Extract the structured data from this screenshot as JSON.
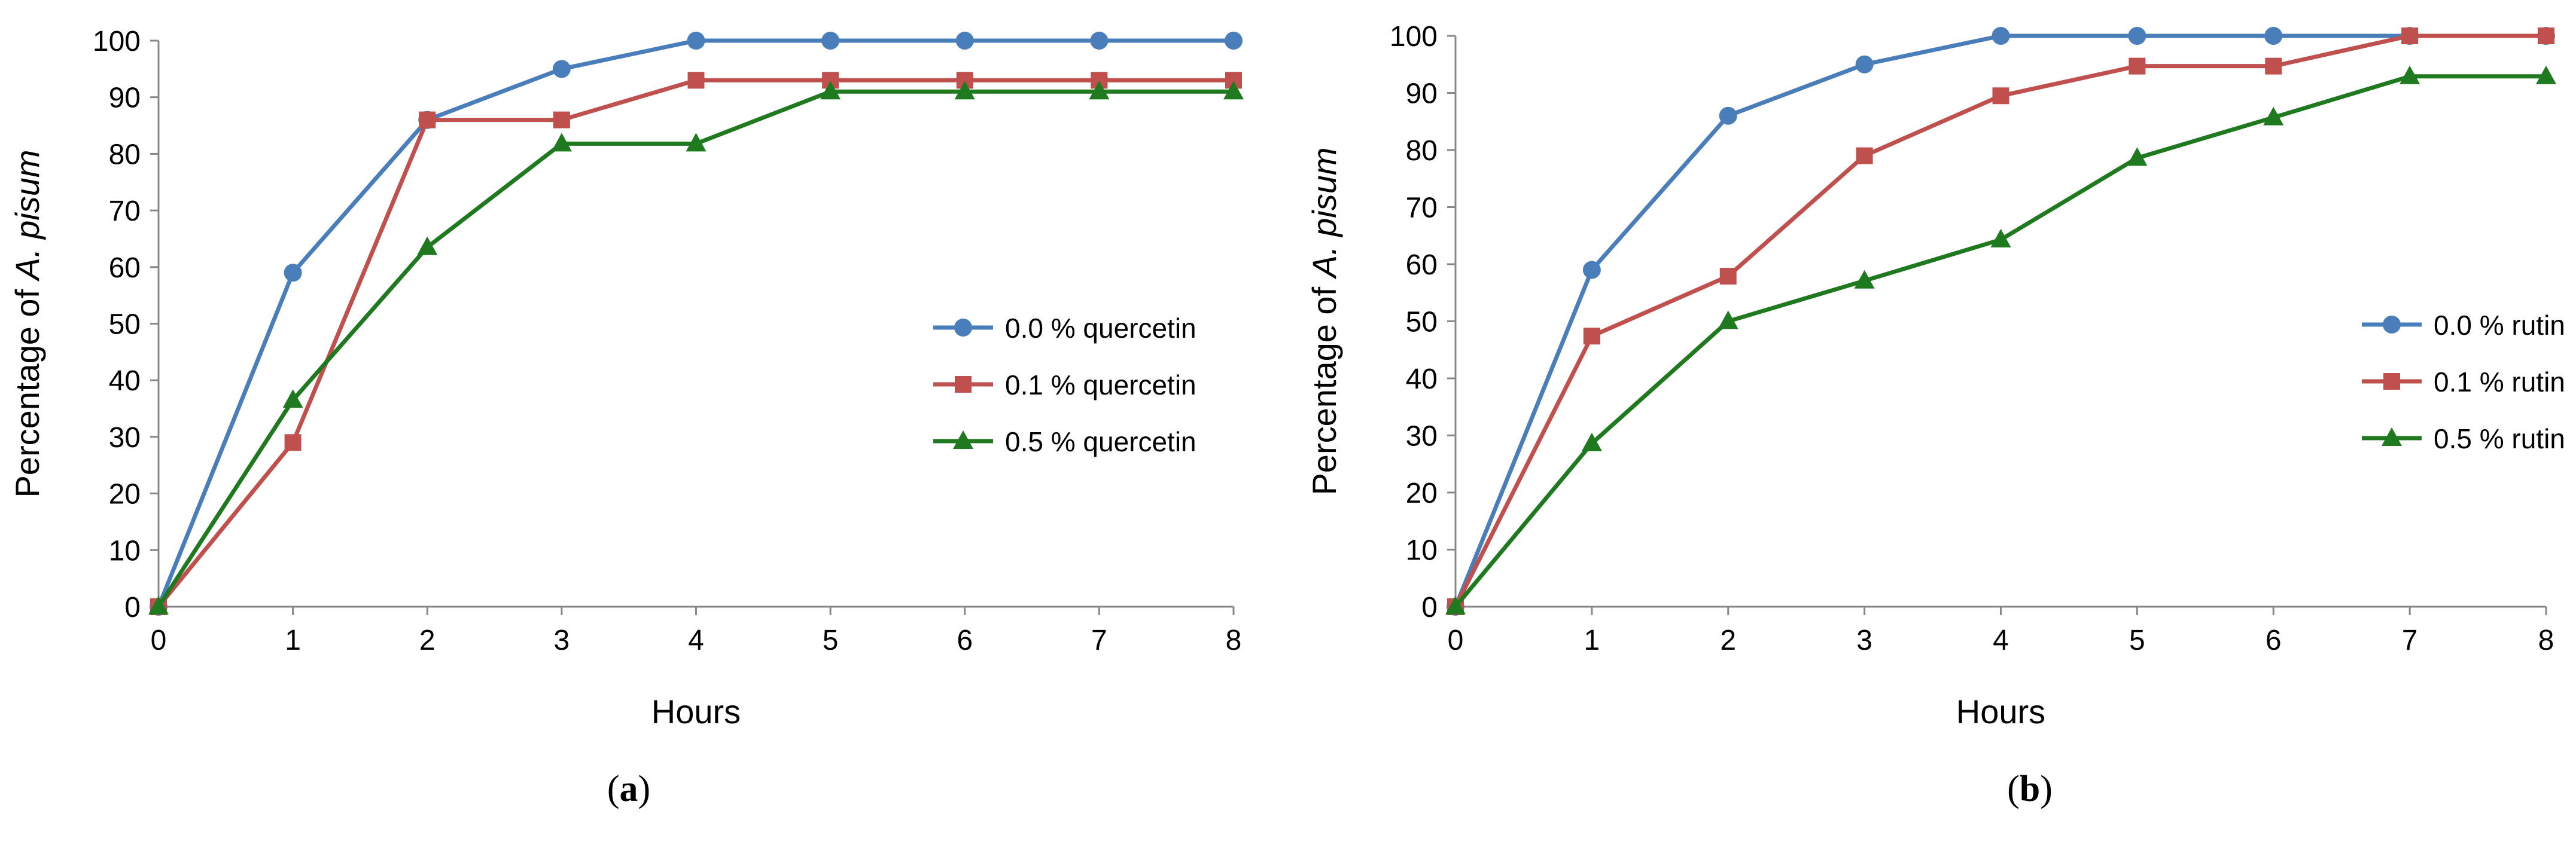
{
  "charts": [
    {
      "panel_label": "a",
      "legend_position": "middle-right",
      "series_colors": [
        "#4a7ebb",
        "#c0504d",
        "#1f7a1f"
      ]
    },
    {
      "panel_label": "b",
      "legend_position": "middle-right",
      "series_colors": [
        "#4a7ebb",
        "#c0504d",
        "#1f7a1f"
      ]
    }
  ],
  "chart_data": [
    {
      "type": "line",
      "title": "",
      "xlabel": "Hours",
      "ylabel_prefix": "Percentage of ",
      "ylabel_species": "A. pisum",
      "x": [
        0,
        1,
        2,
        3,
        4,
        5,
        6,
        7,
        8
      ],
      "xlim": [
        0,
        8
      ],
      "ylim": [
        0,
        100
      ],
      "ytick_step": 10,
      "series": [
        {
          "name": "0.0 % quercetin",
          "marker": "circle",
          "values": [
            0,
            59,
            86,
            95,
            100,
            100,
            100,
            100,
            100
          ]
        },
        {
          "name": "0.1 % quercetin",
          "marker": "square",
          "values": [
            0,
            29,
            86,
            86,
            93,
            93,
            93,
            93,
            93
          ]
        },
        {
          "name": "0.5 % quercetin",
          "marker": "triangle",
          "values": [
            0,
            36.5,
            63.5,
            81.8,
            81.8,
            91,
            91,
            91,
            91
          ]
        }
      ]
    },
    {
      "type": "line",
      "title": "",
      "xlabel": "Hours",
      "ylabel_prefix": "Percentage of ",
      "ylabel_species": "A. pisum",
      "x": [
        0,
        1,
        2,
        3,
        4,
        5,
        6,
        7,
        8
      ],
      "xlim": [
        0,
        8
      ],
      "ylim": [
        0,
        100
      ],
      "ytick_step": 10,
      "series": [
        {
          "name": "0.0 % rutin",
          "marker": "circle",
          "values": [
            0,
            59,
            86,
            95,
            100,
            100,
            100,
            100,
            100
          ]
        },
        {
          "name": "0.1 % rutin",
          "marker": "square",
          "values": [
            0,
            47.4,
            57.9,
            79,
            89.5,
            94.7,
            94.7,
            100,
            100
          ]
        },
        {
          "name": "0.5 % rutin",
          "marker": "triangle",
          "values": [
            0,
            28.6,
            50,
            57.1,
            64.3,
            78.6,
            85.7,
            92.9,
            92.9
          ]
        }
      ]
    }
  ]
}
